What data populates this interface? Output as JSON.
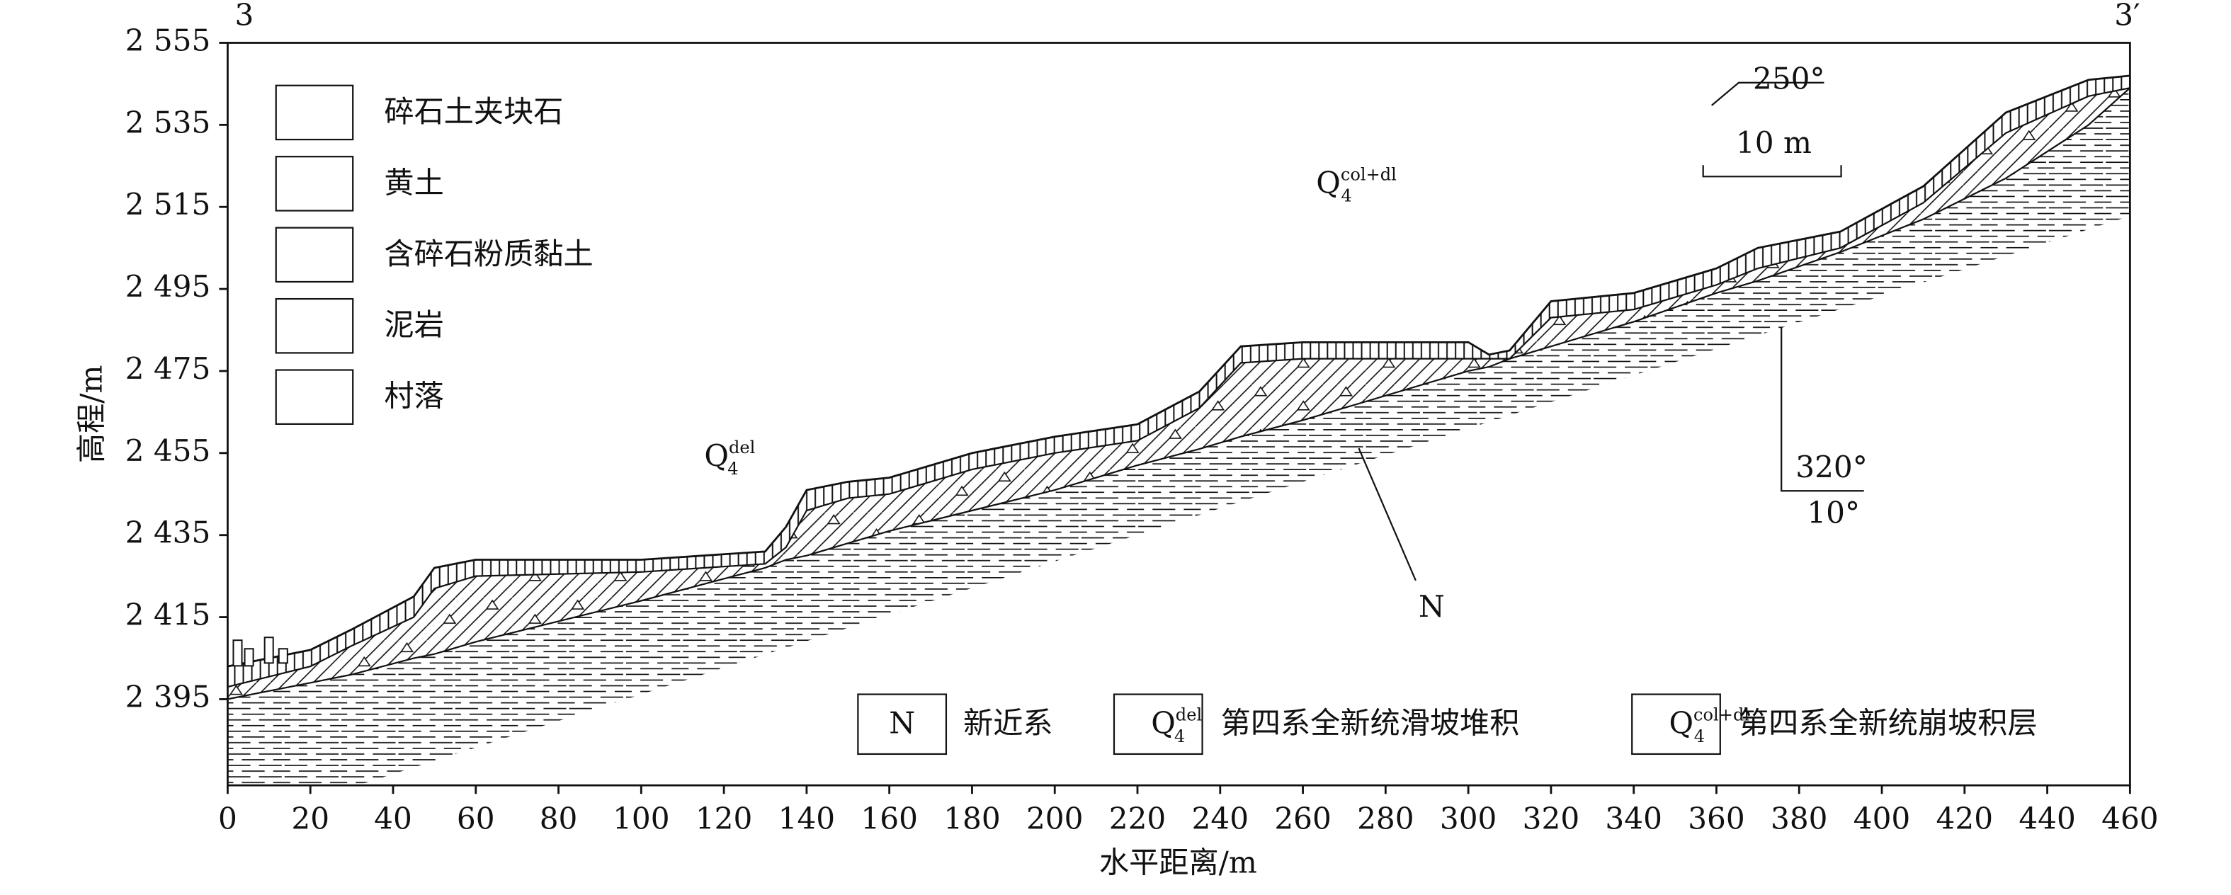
{
  "chart_data": {
    "type": "section",
    "xlabel": "水平距离/m",
    "ylabel": "高程/m",
    "xlim": [
      0,
      460
    ],
    "ylim": [
      2374,
      2555
    ],
    "xticks": [
      0,
      20,
      40,
      60,
      80,
      100,
      120,
      140,
      160,
      180,
      200,
      220,
      240,
      260,
      280,
      300,
      320,
      340,
      360,
      380,
      400,
      420,
      440,
      460
    ],
    "yticks": [
      {
        "value": 2395,
        "label": "2 395"
      },
      {
        "value": 2415,
        "label": "2 415"
      },
      {
        "value": 2435,
        "label": "2 435"
      },
      {
        "value": 2455,
        "label": "2 455"
      },
      {
        "value": 2475,
        "label": "2 475"
      },
      {
        "value": 2495,
        "label": "2 495"
      },
      {
        "value": 2515,
        "label": "2 515"
      },
      {
        "value": 2535,
        "label": "2 535"
      },
      {
        "value": 2555,
        "label": "2 555"
      }
    ],
    "x": [
      0,
      20,
      30,
      45,
      50,
      60,
      100,
      130,
      135,
      140,
      150,
      160,
      180,
      200,
      220,
      235,
      245,
      260,
      300,
      305,
      310,
      320,
      340,
      360,
      370,
      390,
      410,
      430,
      450,
      460
    ],
    "surface": [
      2403,
      2407,
      2412,
      2420,
      2427,
      2429,
      2429,
      2431,
      2437,
      2446,
      2448,
      2449,
      2455,
      2459,
      2462,
      2470,
      2481,
      2482,
      2482,
      2479,
      2480,
      2492,
      2494,
      2500,
      2505,
      2509,
      2520,
      2538,
      2546,
      2547
    ],
    "loess_base": [
      2398,
      2403,
      2408,
      2415,
      2422,
      2425,
      2426,
      2428,
      2432,
      2441,
      2444,
      2445,
      2451,
      2455,
      2458,
      2466,
      2477,
      2478,
      2478,
      2478,
      2478,
      2488,
      2490,
      2496,
      2500,
      2505,
      2516,
      2533,
      2542,
      2544
    ],
    "bedrock_top": [
      2395,
      2399,
      2401,
      2405,
      2406,
      2409,
      2419,
      2427,
      2429,
      2430,
      2433,
      2436,
      2441,
      2446,
      2452,
      2456,
      2459,
      2463,
      2475,
      2476,
      2478,
      2481,
      2487,
      2494,
      2497,
      2504,
      2512,
      2522,
      2535,
      2544
    ],
    "legend": [
      "碎石土夹块石",
      "黄土",
      "含碎石粉质黏土",
      "泥岩",
      "村落"
    ],
    "formations": [
      {
        "symbol": "N",
        "name": "新近系"
      },
      {
        "symbol": {
          "base": "Q",
          "sub": "4",
          "sup": "del"
        },
        "name": "第四系全新统滑坡堆积"
      },
      {
        "symbol": {
          "base": "Q",
          "sub": "4",
          "sup": "col+dl"
        },
        "name": "第四系全新统崩坡积层"
      }
    ],
    "section_start": "3",
    "section_end": "3′",
    "strike": "250°",
    "scale": "10 m",
    "dip_direction": "320°",
    "dip_angle": "10°"
  }
}
